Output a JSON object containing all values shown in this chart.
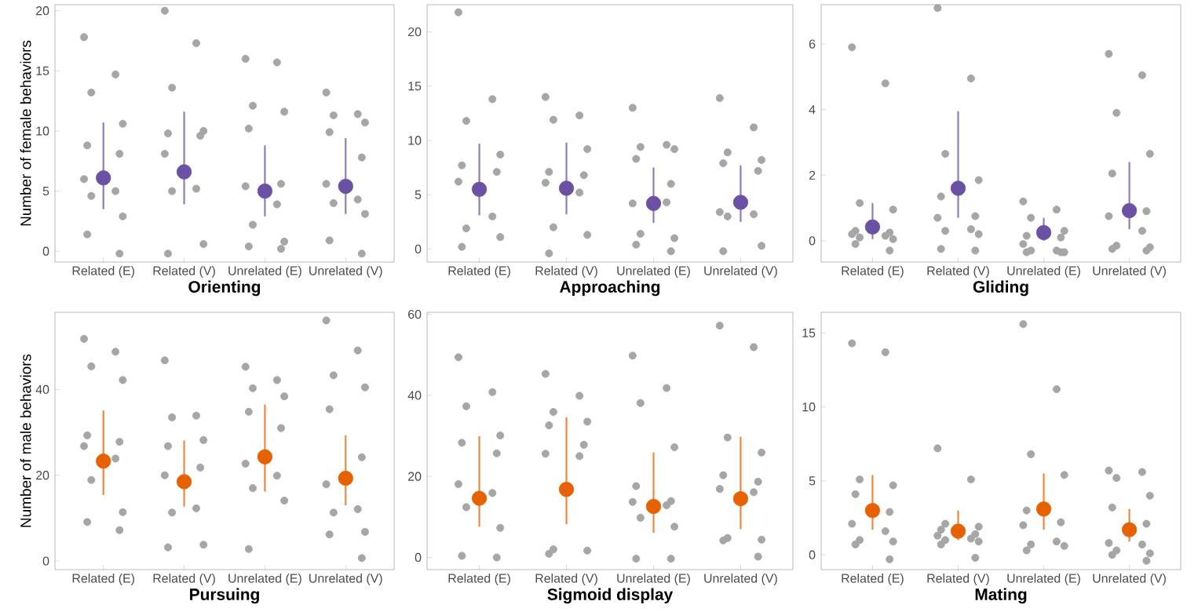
{
  "chart_data": [
    {
      "type": "scatter",
      "xlabel": "Orienting",
      "ylabel": "Number of female behaviors",
      "categories": [
        "Related (E)",
        "Related (V)",
        "Unrelated (E)",
        "Unrelated (V)"
      ],
      "ylim": [
        -0.9,
        20.5
      ],
      "yticks": [
        0,
        5,
        10,
        15,
        20
      ],
      "marker": "circle",
      "series": [
        {
          "color": "#a6a6a6",
          "x": [
            "Related (E)",
            "Related (E)",
            "Related (E)",
            "Related (E)",
            "Related (E)",
            "Related (E)",
            "Related (E)",
            "Related (E)",
            "Related (E)",
            "Related (E)",
            "Related (E)",
            "Related (E)",
            "Related (V)",
            "Related (V)",
            "Related (V)",
            "Related (V)",
            "Related (V)",
            "Related (V)",
            "Related (V)",
            "Related (V)",
            "Related (V)",
            "Related (V)",
            "Related (V)",
            "Unrelated (E)",
            "Unrelated (E)",
            "Unrelated (E)",
            "Unrelated (E)",
            "Unrelated (E)",
            "Unrelated (E)",
            "Unrelated (E)",
            "Unrelated (E)",
            "Unrelated (E)",
            "Unrelated (E)",
            "Unrelated (E)",
            "Unrelated (E)",
            "Unrelated (V)",
            "Unrelated (V)",
            "Unrelated (V)",
            "Unrelated (V)",
            "Unrelated (V)",
            "Unrelated (V)",
            "Unrelated (V)",
            "Unrelated (V)",
            "Unrelated (V)",
            "Unrelated (V)",
            "Unrelated (V)",
            "Unrelated (V)"
          ],
          "values": [
            17.8,
            14.7,
            13.2,
            10.6,
            8.8,
            8.1,
            6.0,
            5.0,
            4.6,
            2.9,
            1.4,
            -0.2,
            20.0,
            17.3,
            13.6,
            10.0,
            9.8,
            9.6,
            8.1,
            5.2,
            5.0,
            0.6,
            -0.2,
            16.0,
            15.7,
            12.1,
            11.6,
            10.2,
            5.6,
            5.4,
            3.9,
            2.2,
            0.8,
            0.4,
            0.2,
            13.2,
            11.4,
            11.3,
            10.7,
            9.9,
            7.8,
            5.6,
            4.3,
            4.0,
            3.1,
            0.9,
            -0.2
          ]
        },
        {
          "color": "#6a51a3",
          "values": [
            6.1,
            6.6,
            5.0,
            5.4
          ],
          "errors": [
            [
              3.5,
              10.7
            ],
            [
              3.9,
              11.6
            ],
            [
              2.9,
              8.8
            ],
            [
              3.1,
              9.4
            ]
          ]
        }
      ]
    },
    {
      "type": "scatter",
      "xlabel": "Approaching",
      "categories": [
        "Related (E)",
        "Related (V)",
        "Unrelated (E)",
        "Unrelated (V)"
      ],
      "ylim": [
        -1.2,
        22.5
      ],
      "yticks": [
        0,
        5,
        10,
        15,
        20
      ],
      "marker": "circle",
      "series": [
        {
          "color": "#a6a6a6",
          "x": [
            "Related (E)",
            "Related (E)",
            "Related (E)",
            "Related (E)",
            "Related (E)",
            "Related (E)",
            "Related (E)",
            "Related (E)",
            "Related (E)",
            "Related (E)",
            "Related (E)",
            "Related (V)",
            "Related (V)",
            "Related (V)",
            "Related (V)",
            "Related (V)",
            "Related (V)",
            "Related (V)",
            "Related (V)",
            "Related (V)",
            "Related (V)",
            "Related (V)",
            "Unrelated (E)",
            "Unrelated (E)",
            "Unrelated (E)",
            "Unrelated (E)",
            "Unrelated (E)",
            "Unrelated (E)",
            "Unrelated (E)",
            "Unrelated (E)",
            "Unrelated (E)",
            "Unrelated (E)",
            "Unrelated (E)",
            "Unrelated (E)",
            "Unrelated (V)",
            "Unrelated (V)",
            "Unrelated (V)",
            "Unrelated (V)",
            "Unrelated (V)",
            "Unrelated (V)",
            "Unrelated (V)",
            "Unrelated (V)",
            "Unrelated (V)",
            "Unrelated (V)",
            "Unrelated (V)"
          ],
          "values": [
            21.8,
            13.8,
            11.8,
            8.7,
            7.7,
            7.1,
            6.2,
            3.0,
            1.9,
            1.1,
            0.2,
            14.0,
            12.3,
            11.9,
            9.2,
            7.1,
            6.8,
            6.1,
            5.2,
            2.0,
            1.3,
            -0.4,
            13.0,
            9.6,
            9.4,
            9.2,
            8.3,
            6.0,
            4.2,
            4.3,
            1.4,
            1.0,
            0.4,
            -0.2,
            13.9,
            11.2,
            8.9,
            8.2,
            7.9,
            7.2,
            3.4,
            3.2,
            3.0,
            0.3,
            -0.2
          ]
        },
        {
          "color": "#6a51a3",
          "values": [
            5.5,
            5.6,
            4.2,
            4.3
          ],
          "errors": [
            [
              3.1,
              9.7
            ],
            [
              3.2,
              9.8
            ],
            [
              2.4,
              7.5
            ],
            [
              2.5,
              7.7
            ]
          ]
        }
      ]
    },
    {
      "type": "scatter",
      "xlabel": "Gliding",
      "categories": [
        "Related (E)",
        "Related (V)",
        "Unrelated (E)",
        "Unrelated (V)"
      ],
      "ylim": [
        -0.65,
        7.2
      ],
      "yticks": [
        0,
        2,
        4,
        6
      ],
      "marker": "circle",
      "series": [
        {
          "color": "#a6a6a6",
          "x": [
            "Related (E)",
            "Related (E)",
            "Related (E)",
            "Related (E)",
            "Related (E)",
            "Related (E)",
            "Related (E)",
            "Related (E)",
            "Related (E)",
            "Related (E)",
            "Related (E)",
            "Related (E)",
            "Related (V)",
            "Related (V)",
            "Related (V)",
            "Related (V)",
            "Related (V)",
            "Related (V)",
            "Related (V)",
            "Related (V)",
            "Related (V)",
            "Related (V)",
            "Related (V)",
            "Related (V)",
            "Unrelated (E)",
            "Unrelated (E)",
            "Unrelated (E)",
            "Unrelated (E)",
            "Unrelated (E)",
            "Unrelated (E)",
            "Unrelated (E)",
            "Unrelated (E)",
            "Unrelated (E)",
            "Unrelated (E)",
            "Unrelated (E)",
            "Unrelated (E)",
            "Unrelated (V)",
            "Unrelated (V)",
            "Unrelated (V)",
            "Unrelated (V)",
            "Unrelated (V)",
            "Unrelated (V)",
            "Unrelated (V)",
            "Unrelated (V)",
            "Unrelated (V)",
            "Unrelated (V)",
            "Unrelated (V)",
            "Unrelated (V)"
          ],
          "values": [
            5.9,
            4.8,
            1.15,
            0.95,
            0.3,
            0.25,
            0.2,
            0.15,
            0.1,
            0.05,
            -0.1,
            -0.3,
            7.1,
            4.95,
            2.65,
            1.85,
            1.35,
            0.75,
            0.7,
            0.35,
            0.3,
            0.2,
            -0.25,
            -0.3,
            1.2,
            0.95,
            0.7,
            0.3,
            0.15,
            0.1,
            -0.1,
            -0.3,
            -0.3,
            -0.35,
            -0.35,
            -0.35,
            5.7,
            5.05,
            3.9,
            2.65,
            2.05,
            0.9,
            0.75,
            0.3,
            -0.15,
            -0.2,
            -0.25,
            -0.3
          ]
        },
        {
          "color": "#6a51a3",
          "values": [
            0.42,
            1.6,
            0.25,
            0.92
          ],
          "errors": [
            [
              0.05,
              1.15
            ],
            [
              0.7,
              3.95
            ],
            [
              0.0,
              0.7
            ],
            [
              0.35,
              2.4
            ]
          ]
        }
      ]
    },
    {
      "type": "scatter",
      "xlabel": "Pursuing",
      "ylabel": "Number of male behaviors",
      "categories": [
        "Related (E)",
        "Related (V)",
        "Unrelated (E)",
        "Unrelated (V)"
      ],
      "ylim": [
        -2,
        58
      ],
      "yticks": [
        0,
        20,
        40
      ],
      "marker": "circle",
      "series": [
        {
          "color": "#a6a6a6",
          "x": [
            "Related (E)",
            "Related (E)",
            "Related (E)",
            "Related (E)",
            "Related (E)",
            "Related (E)",
            "Related (E)",
            "Related (E)",
            "Related (E)",
            "Related (E)",
            "Related (E)",
            "Related (E)",
            "Related (V)",
            "Related (V)",
            "Related (V)",
            "Related (V)",
            "Related (V)",
            "Related (V)",
            "Related (V)",
            "Related (V)",
            "Related (V)",
            "Related (V)",
            "Related (V)",
            "Unrelated (E)",
            "Unrelated (E)",
            "Unrelated (E)",
            "Unrelated (E)",
            "Unrelated (E)",
            "Unrelated (E)",
            "Unrelated (E)",
            "Unrelated (E)",
            "Unrelated (E)",
            "Unrelated (E)",
            "Unrelated (E)",
            "Unrelated (V)",
            "Unrelated (V)",
            "Unrelated (V)",
            "Unrelated (V)",
            "Unrelated (V)",
            "Unrelated (V)",
            "Unrelated (V)",
            "Unrelated (V)",
            "Unrelated (V)",
            "Unrelated (V)",
            "Unrelated (V)",
            "Unrelated (V)"
          ],
          "values": [
            51.8,
            48.8,
            45.4,
            42.2,
            29.3,
            27.8,
            26.8,
            23.9,
            18.9,
            11.4,
            9.1,
            7.2,
            46.8,
            33.9,
            33.5,
            28.2,
            26.8,
            21.8,
            20.0,
            12.3,
            11.3,
            3.8,
            3.2,
            45.3,
            42.2,
            40.3,
            38.4,
            34.8,
            31.0,
            22.7,
            19.9,
            17.0,
            14.1,
            2.8,
            56.1,
            49.1,
            43.3,
            40.5,
            35.4,
            24.2,
            17.9,
            12.1,
            11.3,
            6.8,
            6.2,
            0.7
          ]
        },
        {
          "color": "#e66100",
          "values": [
            23.3,
            18.5,
            24.3,
            19.3
          ],
          "errors": [
            [
              15.4,
              35.1
            ],
            [
              12.7,
              28.1
            ],
            [
              16.2,
              36.5
            ],
            [
              13.0,
              29.3
            ]
          ]
        }
      ]
    },
    {
      "type": "scatter",
      "xlabel": "Sigmoid display",
      "categories": [
        "Related (E)",
        "Related (V)",
        "Unrelated (E)",
        "Unrelated (V)"
      ],
      "ylim": [
        -3,
        60.5
      ],
      "yticks": [
        0,
        20,
        40,
        60
      ],
      "marker": "circle",
      "series": [
        {
          "color": "#a6a6a6",
          "x": [
            "Related (E)",
            "Related (E)",
            "Related (E)",
            "Related (E)",
            "Related (E)",
            "Related (E)",
            "Related (E)",
            "Related (E)",
            "Related (E)",
            "Related (E)",
            "Related (E)",
            "Related (E)",
            "Related (V)",
            "Related (V)",
            "Related (V)",
            "Related (V)",
            "Related (V)",
            "Related (V)",
            "Related (V)",
            "Related (V)",
            "Related (V)",
            "Related (V)",
            "Related (V)",
            "Unrelated (E)",
            "Unrelated (E)",
            "Unrelated (E)",
            "Unrelated (E)",
            "Unrelated (E)",
            "Unrelated (E)",
            "Unrelated (E)",
            "Unrelated (E)",
            "Unrelated (E)",
            "Unrelated (E)",
            "Unrelated (E)",
            "Unrelated (E)",
            "Unrelated (V)",
            "Unrelated (V)",
            "Unrelated (V)",
            "Unrelated (V)",
            "Unrelated (V)",
            "Unrelated (V)",
            "Unrelated (V)",
            "Unrelated (V)",
            "Unrelated (V)",
            "Unrelated (V)",
            "Unrelated (V)",
            "Unrelated (V)"
          ],
          "values": [
            49.4,
            40.8,
            37.3,
            30.1,
            28.3,
            25.7,
            18.1,
            15.9,
            12.4,
            7.3,
            0.4,
            0.0,
            45.3,
            39.9,
            35.9,
            33.5,
            32.6,
            27.8,
            25.6,
            25.0,
            2.0,
            1.7,
            0.9,
            49.8,
            41.8,
            38.1,
            27.2,
            17.6,
            13.9,
            13.7,
            12.9,
            9.8,
            7.6,
            -0.3,
            -0.3,
            57.2,
            51.9,
            29.6,
            25.9,
            20.3,
            18.7,
            16.9,
            16.1,
            4.8,
            4.4,
            4.2,
            0.2
          ]
        },
        {
          "color": "#e66100",
          "values": [
            14.6,
            16.8,
            12.6,
            14.5
          ],
          "errors": [
            [
              7.6,
              29.9
            ],
            [
              8.2,
              34.6
            ],
            [
              6.1,
              25.9
            ],
            [
              7.0,
              29.8
            ]
          ]
        }
      ]
    },
    {
      "type": "scatter",
      "xlabel": "Mating",
      "categories": [
        "Related (E)",
        "Related (V)",
        "Unrelated (E)",
        "Unrelated (V)"
      ],
      "ylim": [
        -1.0,
        16.4
      ],
      "yticks": [
        0,
        5,
        10,
        15
      ],
      "marker": "circle",
      "series": [
        {
          "color": "#a6a6a6",
          "x": [
            "Related (E)",
            "Related (E)",
            "Related (E)",
            "Related (E)",
            "Related (E)",
            "Related (E)",
            "Related (E)",
            "Related (E)",
            "Related (E)",
            "Related (E)",
            "Related (E)",
            "Related (E)",
            "Related (V)",
            "Related (V)",
            "Related (V)",
            "Related (V)",
            "Related (V)",
            "Related (V)",
            "Related (V)",
            "Related (V)",
            "Related (V)",
            "Related (V)",
            "Related (V)",
            "Related (V)",
            "Unrelated (E)",
            "Unrelated (E)",
            "Unrelated (E)",
            "Unrelated (E)",
            "Unrelated (E)",
            "Unrelated (E)",
            "Unrelated (E)",
            "Unrelated (E)",
            "Unrelated (E)",
            "Unrelated (E)",
            "Unrelated (E)",
            "Unrelated (V)",
            "Unrelated (V)",
            "Unrelated (V)",
            "Unrelated (V)",
            "Unrelated (V)",
            "Unrelated (V)",
            "Unrelated (V)",
            "Unrelated (V)",
            "Unrelated (V)",
            "Unrelated (V)",
            "Unrelated (V)",
            "Unrelated (V)"
          ],
          "values": [
            14.3,
            13.7,
            5.1,
            4.7,
            4.1,
            2.9,
            2.1,
            1.6,
            1.0,
            0.9,
            0.7,
            -0.3,
            7.2,
            5.1,
            2.1,
            1.9,
            1.7,
            1.4,
            1.3,
            1.1,
            1.0,
            0.9,
            0.7,
            -0.2,
            15.6,
            11.2,
            6.8,
            5.4,
            3.0,
            2.2,
            2.0,
            0.9,
            0.7,
            0.6,
            0.3,
            5.7,
            5.6,
            5.2,
            4.0,
            3.2,
            2.1,
            0.8,
            0.7,
            0.3,
            0.1,
            0.0,
            -0.4
          ]
        },
        {
          "color": "#e66100",
          "values": [
            3.0,
            1.6,
            3.1,
            1.7
          ],
          "errors": [
            [
              1.7,
              5.4
            ],
            [
              1.0,
              3.0
            ],
            [
              1.7,
              5.5
            ],
            [
              0.9,
              3.1
            ]
          ]
        }
      ]
    }
  ]
}
